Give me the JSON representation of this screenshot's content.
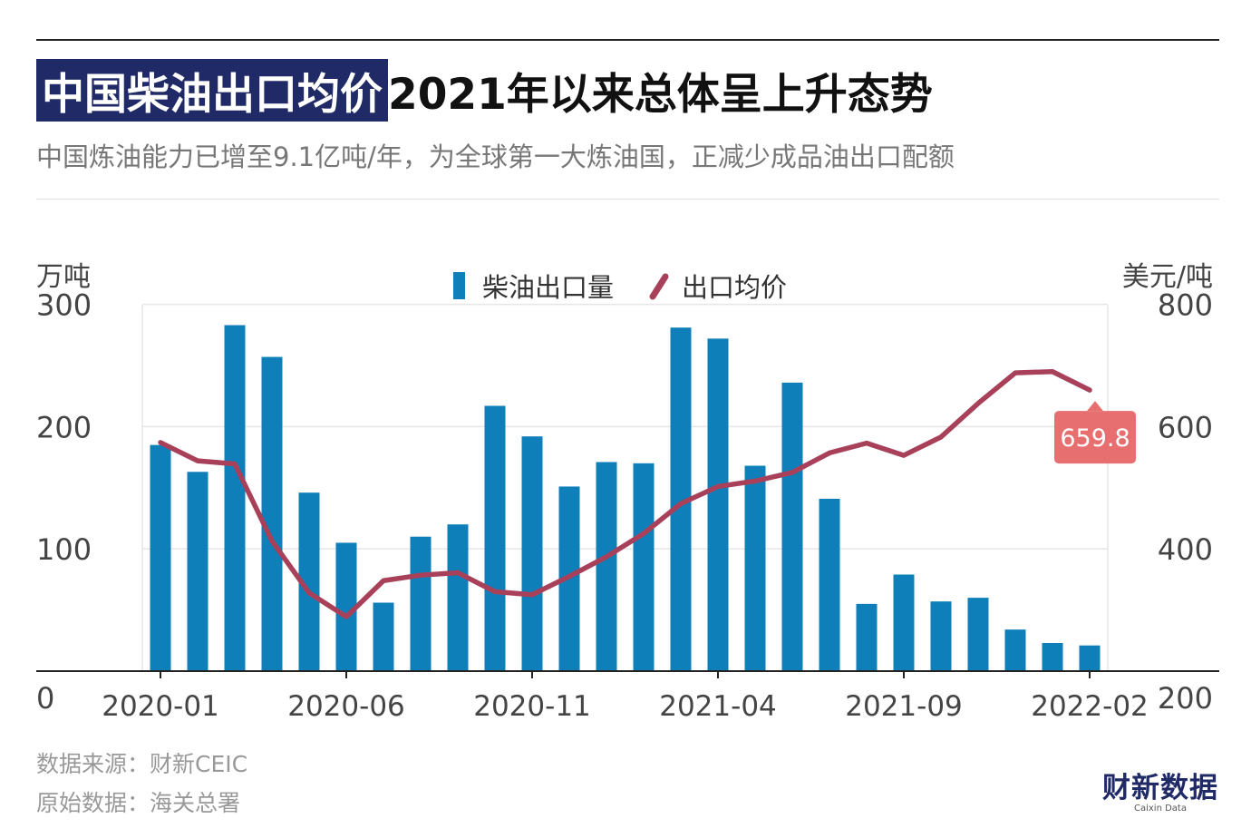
{
  "title_highlight": "中国柴油出口均价",
  "title_rest": "2021年以来总体呈上升态势",
  "subtitle": "中国炼油能力已增至9.1亿吨/年，为全球第一大炼油国，正减少成品油出口配额",
  "footer": {
    "source": "数据来源：财新CEIC",
    "origin": "原始数据：海关总署"
  },
  "brand": {
    "cn": "财新数据",
    "en": "Caixin Data"
  },
  "colors": {
    "bar": "#0f7fba",
    "line": "#a8405a",
    "callout": "#e76f6f",
    "title_bg": "#1f2a66"
  },
  "chart_data": {
    "type": "bar+line",
    "x": [
      "2020-01",
      "2020-02",
      "2020-03",
      "2020-04",
      "2020-05",
      "2020-06",
      "2020-07",
      "2020-08",
      "2020-09",
      "2020-10",
      "2020-11",
      "2020-12",
      "2021-01",
      "2021-02",
      "2021-03",
      "2021-04",
      "2021-05",
      "2021-06",
      "2021-07",
      "2021-08",
      "2021-09",
      "2021-10",
      "2021-11",
      "2021-12",
      "2022-01",
      "2022-02"
    ],
    "x_tick_labels": [
      "2020-01",
      "2020-06",
      "2020-11",
      "2021-04",
      "2021-09",
      "2022-02"
    ],
    "ylabel_left": "万吨",
    "ylabel_right": "美元/吨",
    "ylim_left": [
      0,
      300
    ],
    "ylim_right": [
      200,
      800
    ],
    "yticks_left": [
      "0",
      "100",
      "200",
      "300"
    ],
    "yticks_right": [
      "200",
      "400",
      "600",
      "800"
    ],
    "grid": true,
    "legend_position": "top-center",
    "series": [
      {
        "name": "柴油出口量",
        "type": "bar",
        "axis": "left",
        "values": [
          185,
          163,
          283,
          257,
          146,
          105,
          56,
          110,
          120,
          217,
          192,
          151,
          171,
          170,
          281,
          272,
          168,
          236,
          141,
          55,
          79,
          57,
          60,
          34,
          23,
          21
        ]
      },
      {
        "name": "出口均价",
        "type": "line",
        "axis": "right",
        "values": [
          574,
          544,
          539,
          413,
          328,
          289,
          348,
          357,
          361,
          330,
          325,
          355,
          387,
          425,
          474,
          502,
          511,
          525,
          557,
          573,
          553,
          583,
          638,
          688,
          690,
          659.8
        ]
      }
    ],
    "annotation": {
      "label": "659.8"
    }
  }
}
